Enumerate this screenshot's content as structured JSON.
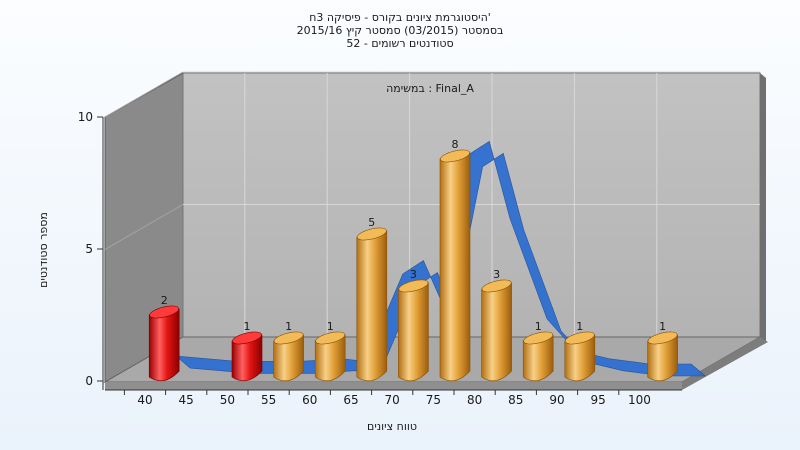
{
  "chart_data": {
    "type": "bar",
    "title_lines": [
      "היסטוגרמת ציונים בקורס - פיסיקה 3ח'",
      "בסמסטר  (03/2015)  סמסטר קיץ 2015/16",
      "52 - סטודנטים רשומים"
    ],
    "task_label": "במשימה : Final_A",
    "xlabel": "טווח ציונים",
    "ylabel": "מספר סטודנטים",
    "x_ticks": [
      "40",
      "45",
      "50",
      "55",
      "60",
      "65",
      "70",
      "75",
      "80",
      "85",
      "90",
      "95",
      "100"
    ],
    "y_ticks": [
      "0",
      "5",
      "10"
    ],
    "ylim": [
      0,
      10
    ],
    "bars": [
      {
        "x": 42.5,
        "value": 2,
        "label": "2",
        "failing": true
      },
      {
        "x": 52.5,
        "value": 1,
        "label": "1",
        "failing": true
      },
      {
        "x": 57.5,
        "value": 1,
        "label": "1",
        "failing": false
      },
      {
        "x": 62.5,
        "value": 1,
        "label": "1",
        "failing": false
      },
      {
        "x": 67.5,
        "value": 5,
        "label": "5",
        "failing": false
      },
      {
        "x": 72.5,
        "value": 3,
        "label": "3",
        "failing": false
      },
      {
        "x": 77.5,
        "value": 8,
        "label": "8",
        "failing": false
      },
      {
        "x": 82.5,
        "value": 3,
        "label": "3",
        "failing": false
      },
      {
        "x": 87.5,
        "value": 1,
        "label": "1",
        "failing": false
      },
      {
        "x": 92.5,
        "value": 1,
        "label": "1",
        "failing": false
      },
      {
        "x": 102.5,
        "value": 1,
        "label": "1",
        "failing": false
      }
    ],
    "trend_curve": [
      [
        42.5,
        0.3
      ],
      [
        50,
        0.1
      ],
      [
        57.5,
        0.1
      ],
      [
        62.5,
        0.2
      ],
      [
        65.5,
        0.1
      ],
      [
        70,
        3.4
      ],
      [
        72.5,
        3.9
      ],
      [
        74.5,
        2.5
      ],
      [
        78,
        7.9
      ],
      [
        80.5,
        8.4
      ],
      [
        83,
        5.5
      ],
      [
        87.5,
        1.7
      ],
      [
        91,
        0.5
      ],
      [
        95,
        0.2
      ],
      [
        100,
        0.0
      ],
      [
        105,
        0.0
      ]
    ],
    "grid": true,
    "colors": {
      "failing": "#e01010",
      "passing": "#e8a537",
      "curve": "#2f6fd0",
      "plot_back": "#b9b9b9",
      "left_wall": "#8a8a8a",
      "floor": "#a9a9a9"
    }
  }
}
